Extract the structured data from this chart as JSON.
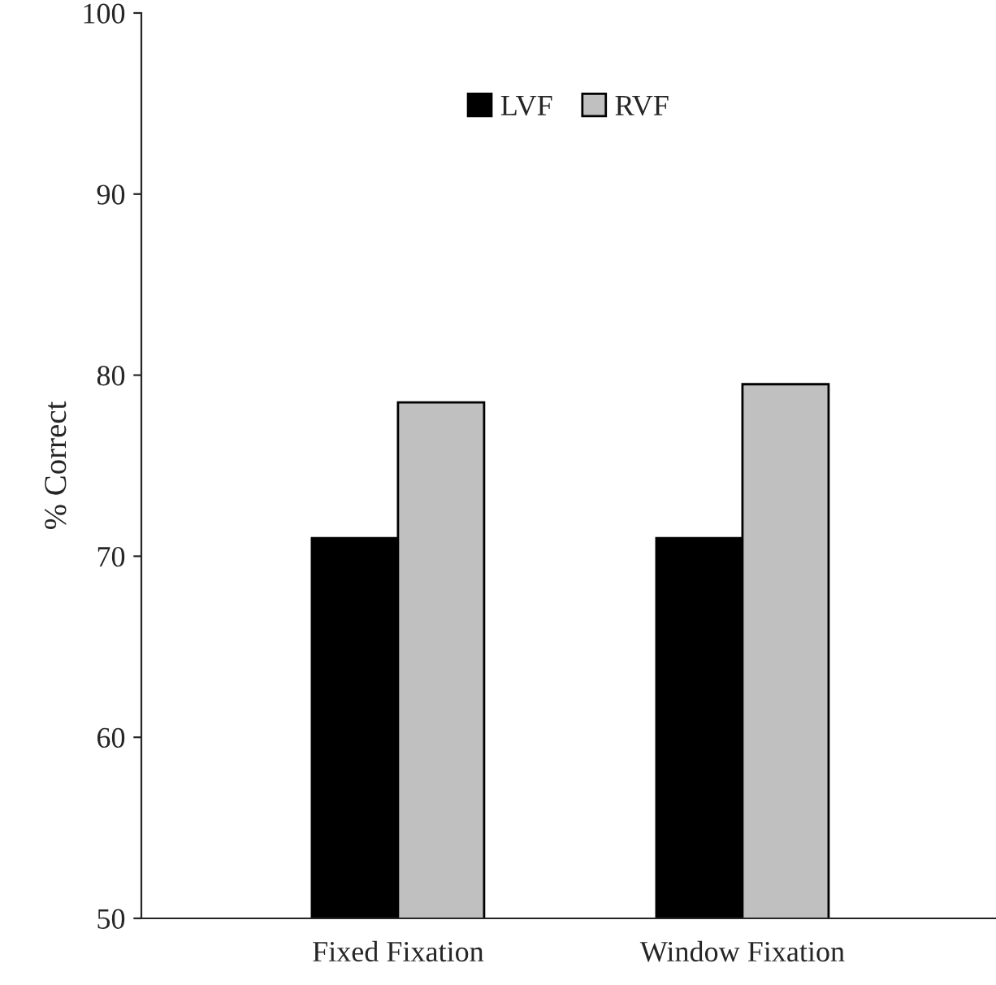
{
  "chart_data": {
    "type": "bar",
    "ylabel": "% Correct",
    "categories": [
      "Fixed Fixation",
      "Window Fixation"
    ],
    "series": [
      {
        "name": "LVF",
        "color": "#000000",
        "values": [
          71.0,
          71.0
        ]
      },
      {
        "name": "RVF",
        "color": "#c0c0c0",
        "values": [
          78.5,
          79.5
        ]
      }
    ],
    "ylim": [
      50,
      100
    ],
    "yticks": [
      50,
      60,
      70,
      80,
      90,
      100
    ],
    "grid": false,
    "legend": "top"
  }
}
